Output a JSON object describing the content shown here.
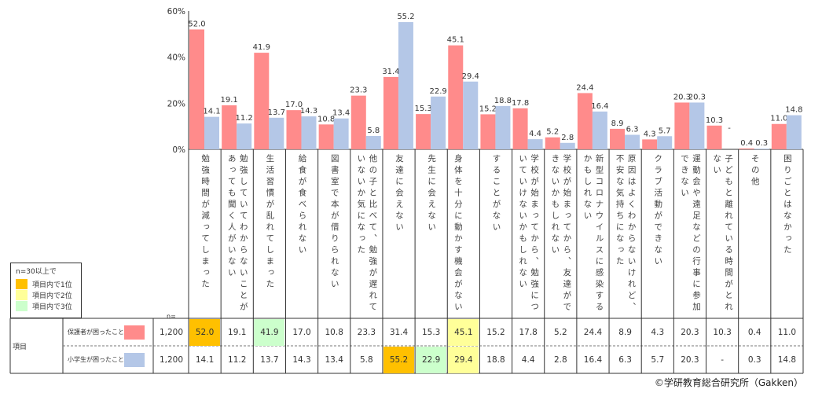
{
  "chart_data": {
    "type": "bar",
    "ylim": [
      0,
      60
    ],
    "yticks": [
      "0%",
      "20%",
      "40%",
      "60%"
    ],
    "grid": false,
    "categories": [
      "勉強時間が減ってしまった",
      "勉強していてわからないことがあっても聞く人がいない",
      "生活習慣が乱れてしまった",
      "給食が食べられない",
      "図書室で本が借りられない",
      "他の子と比べて、勉強が遅れていないか気になった",
      "友達に会えない",
      "先生に会えない",
      "身体を十分に動かす機会がない",
      "することがない",
      "学校が始まってから、勉強についていけないかもしれない",
      "学校が始まってから、友達ができないかもしれない",
      "新型コロナウイルスに感染するかもしれない",
      "原因はよくわからないけれど、不安な気持ちになった",
      "クラブ活動ができない",
      "運動会や遠足などの行事に参加できない",
      "子どもと離れている時間がとれない",
      "その他",
      "困りごとはなかった"
    ],
    "series": [
      {
        "name": "保護者が困ったこと",
        "n": "1,200",
        "color": "#FF8B8B",
        "values": [
          52.0,
          19.1,
          41.9,
          17.0,
          10.8,
          23.3,
          31.4,
          15.3,
          45.1,
          15.2,
          17.8,
          5.2,
          24.4,
          8.9,
          4.3,
          20.3,
          10.3,
          0.4,
          11.0
        ],
        "labels": [
          "52.0",
          "19.1",
          "41.9",
          "17.0",
          "10.8",
          "23.3",
          "31.4",
          "15.3",
          "45.1",
          "15.2",
          "17.8",
          "5.2",
          "24.4",
          "8.9",
          "4.3",
          "20.3",
          "10.3",
          "0.4",
          "11.0"
        ],
        "ranks": {
          "0": 1,
          "8": 2,
          "2": 3
        }
      },
      {
        "name": "小学生が困ったこと",
        "n": "1,200",
        "color": "#B4C7E7",
        "values": [
          14.1,
          11.2,
          13.7,
          14.3,
          13.4,
          5.8,
          55.2,
          22.9,
          29.4,
          18.8,
          4.4,
          2.8,
          16.4,
          6.3,
          5.7,
          20.3,
          null,
          0.3,
          14.8
        ],
        "labels": [
          "14.1",
          "11.2",
          "13.7",
          "14.3",
          "13.4",
          "5.8",
          "55.2",
          "22.9",
          "29.4",
          "18.8",
          "4.4",
          "2.8",
          "16.4",
          "6.3",
          "5.7",
          "20.3",
          "-",
          "0.3",
          "14.8"
        ],
        "ranks": {
          "6": 1,
          "8": 2,
          "7": 3
        }
      }
    ]
  },
  "legend": {
    "title": "n=30以上で",
    "items": [
      {
        "label": "項目内で1位",
        "color": "#FFC000"
      },
      {
        "label": "項目内で2位",
        "color": "#FFFF99"
      },
      {
        "label": "項目内で3位",
        "color": "#CCFFCC"
      }
    ]
  },
  "table": {
    "header": "項目",
    "n_label": "n="
  },
  "copyright": "©学研教育総合研究所（Gakken）"
}
